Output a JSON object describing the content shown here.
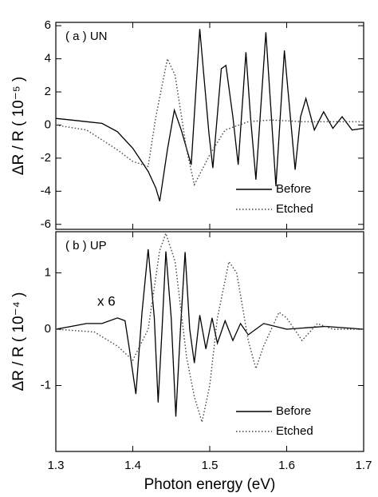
{
  "chart_data": [
    {
      "type": "line",
      "panel_label": "( a ) UN",
      "y_label": "ΔR / R ( 10⁻⁵ )",
      "xlim": [
        1.3,
        1.7
      ],
      "xticks": [
        1.3,
        1.4,
        1.5,
        1.6,
        1.7
      ],
      "ylim": [
        -6.3,
        6.2
      ],
      "yticks": [
        -6,
        -4,
        -2,
        0,
        2,
        4,
        6
      ],
      "legend": "lower right",
      "series": [
        {
          "name": "Before",
          "color": "#000000",
          "linestyle": "solid",
          "x": [
            1.3,
            1.32,
            1.34,
            1.36,
            1.38,
            1.4,
            1.42,
            1.43,
            1.435,
            1.445,
            1.454,
            1.463,
            1.476,
            1.487,
            1.499,
            1.504,
            1.515,
            1.521,
            1.53,
            1.537,
            1.547,
            1.553,
            1.56,
            1.573,
            1.586,
            1.597,
            1.611,
            1.618,
            1.625,
            1.636,
            1.648,
            1.66,
            1.672,
            1.685,
            1.7
          ],
          "values": [
            0.4,
            0.3,
            0.2,
            0.1,
            -0.4,
            -1.4,
            -2.8,
            -3.8,
            -4.6,
            -1.5,
            0.9,
            -0.3,
            -2.4,
            5.8,
            -0.5,
            -2.6,
            3.4,
            3.6,
            0.5,
            -2.4,
            4.4,
            0.5,
            -3.3,
            5.6,
            -3.7,
            4.5,
            -2.7,
            0.5,
            1.6,
            -0.3,
            0.8,
            -0.2,
            0.5,
            -0.3,
            -0.2
          ]
        },
        {
          "name": "Etched",
          "color": "#444444",
          "linestyle": "dotted",
          "x": [
            1.3,
            1.34,
            1.38,
            1.4,
            1.42,
            1.43,
            1.445,
            1.455,
            1.47,
            1.48,
            1.5,
            1.52,
            1.55,
            1.58,
            1.62,
            1.66,
            1.7
          ],
          "values": [
            0.0,
            -0.3,
            -1.5,
            -2.2,
            -2.5,
            0.5,
            4.0,
            3.0,
            -1.5,
            -3.6,
            -1.8,
            -0.3,
            0.2,
            0.3,
            0.2,
            0.2,
            0.2
          ]
        }
      ]
    },
    {
      "type": "line",
      "panel_label": "( b ) UP",
      "y_label": "ΔR / R ( 10⁻⁴ )",
      "annotation": "x 6",
      "x_label": "Photon energy (eV)",
      "xlim": [
        1.3,
        1.7
      ],
      "xticks": [
        1.3,
        1.4,
        1.5,
        1.6,
        1.7
      ],
      "ylim": [
        -2.17,
        1.73
      ],
      "yticks": [
        -1,
        0,
        1
      ],
      "legend": "lower right",
      "series": [
        {
          "name": "Before",
          "color": "#000000",
          "linestyle": "solid",
          "x": [
            1.3,
            1.32,
            1.34,
            1.36,
            1.38,
            1.39,
            1.395,
            1.404,
            1.412,
            1.42,
            1.428,
            1.433,
            1.438,
            1.443,
            1.45,
            1.456,
            1.462,
            1.468,
            1.474,
            1.48,
            1.487,
            1.495,
            1.503,
            1.51,
            1.52,
            1.53,
            1.54,
            1.55,
            1.57,
            1.6,
            1.65,
            1.7
          ],
          "values": [
            0.0,
            0.05,
            0.1,
            0.1,
            0.2,
            0.15,
            -0.3,
            -1.15,
            0.3,
            1.42,
            0.2,
            -1.3,
            0.0,
            1.38,
            0.2,
            -1.55,
            0.0,
            1.37,
            0.0,
            -0.6,
            0.25,
            -0.35,
            0.2,
            -0.25,
            0.15,
            -0.2,
            0.1,
            -0.1,
            0.1,
            0.0,
            0.05,
            0.0
          ]
        },
        {
          "name": "Etched",
          "color": "#444444",
          "linestyle": "dotted",
          "x": [
            1.3,
            1.35,
            1.38,
            1.4,
            1.42,
            1.435,
            1.443,
            1.455,
            1.47,
            1.48,
            1.49,
            1.5,
            1.51,
            1.525,
            1.535,
            1.55,
            1.56,
            1.57,
            1.59,
            1.6,
            1.62,
            1.64,
            1.66,
            1.7
          ],
          "values": [
            0.0,
            -0.05,
            -0.3,
            -0.55,
            0.0,
            1.4,
            1.7,
            1.2,
            -0.5,
            -1.2,
            -1.65,
            -1.0,
            0.2,
            1.2,
            1.0,
            -0.2,
            -0.7,
            -0.3,
            0.3,
            0.2,
            -0.2,
            0.1,
            0.0,
            0.0
          ]
        }
      ]
    }
  ]
}
